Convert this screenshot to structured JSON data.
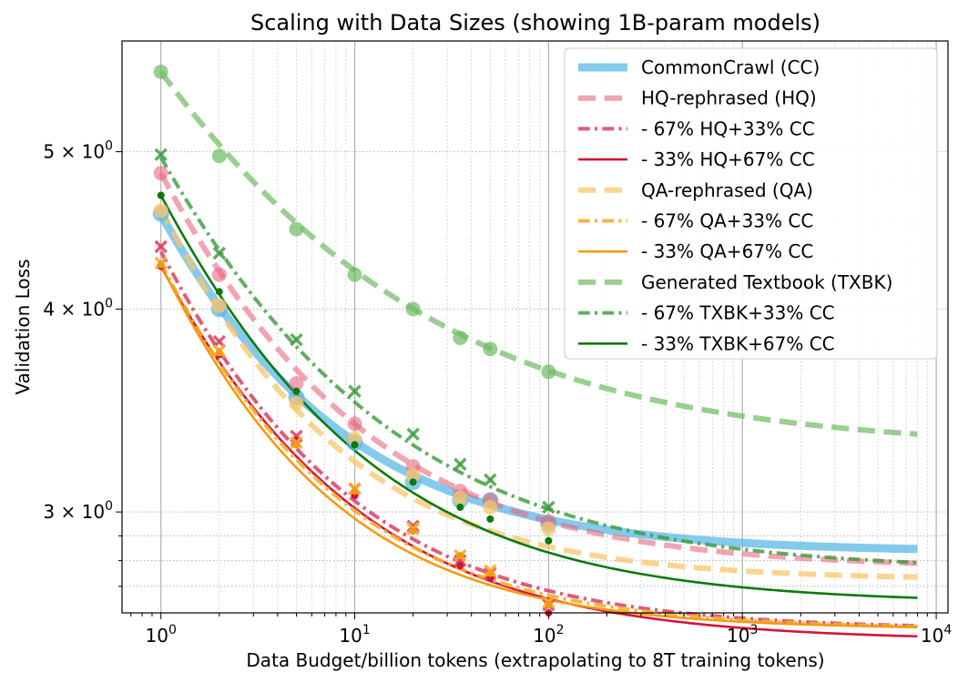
{
  "chart_data": {
    "type": "line",
    "title": "Scaling with Data Sizes (showing 1B-param models)",
    "xlabel": "Data Budget/billion tokens (extrapolating to 8T training tokens)",
    "ylabel": "Validation Loss",
    "xscale": "log",
    "yscale": "log",
    "xlim": [
      0.63,
      11500
    ],
    "ylim": [
      2.6,
      5.85
    ],
    "grid": true,
    "legend_position": "top-right",
    "x_ticks": [
      {
        "value": 1,
        "base": "10",
        "exp": "0"
      },
      {
        "value": 10,
        "base": "10",
        "exp": "1"
      },
      {
        "value": 100,
        "base": "10",
        "exp": "2"
      },
      {
        "value": 1000,
        "base": "10",
        "exp": "3"
      },
      {
        "value": 10000,
        "base": "10",
        "exp": "4"
      }
    ],
    "y_ticks": [
      {
        "value": 3,
        "mant": "3",
        "base": "10",
        "exp": "0"
      },
      {
        "value": 4,
        "mant": "4",
        "base": "10",
        "exp": "0"
      },
      {
        "value": 5,
        "mant": "5",
        "base": "10",
        "exp": "0"
      }
    ],
    "points_x": [
      1,
      2,
      5,
      10,
      20,
      35,
      50,
      100
    ],
    "curve_x_end": 8000,
    "series": [
      {
        "name": "CommonCrawl (CC)",
        "color": "#5bb8e6",
        "dash": "solid",
        "width": 9,
        "opacity": 0.75,
        "marker": "circle",
        "marker_size": 9,
        "fit": {
          "L": 2.835,
          "A": 1.74,
          "alpha": 0.56
        },
        "points": [
          4.58,
          4.0,
          3.53,
          3.31,
          3.13,
          3.05,
          3.05,
          2.95
        ]
      },
      {
        "name": "HQ-rephrased (HQ)",
        "color": "#e8687e",
        "dash": "dashed",
        "width": 6,
        "opacity": 0.6,
        "marker": "circle",
        "marker_size": 8,
        "fit": {
          "L": 2.77,
          "A": 2.08,
          "alpha": 0.52
        },
        "points": [
          4.85,
          4.2,
          3.6,
          3.4,
          3.2,
          3.09,
          3.05,
          2.96
        ]
      },
      {
        "name": "- 67% HQ+33% CC",
        "color": "#d94060",
        "dash": "dashdot",
        "width": 4,
        "opacity": 0.85,
        "marker": "x",
        "marker_size": 6,
        "fit": {
          "L": 2.54,
          "A": 1.8,
          "alpha": 0.55
        },
        "points": [
          4.37,
          3.82,
          3.34,
          3.1,
          2.94,
          2.8,
          2.75,
          2.63
        ]
      },
      {
        "name": "- 33% HQ+67% CC",
        "color": "#d4143a",
        "dash": "solid",
        "width": 2.6,
        "opacity": 1,
        "marker": "dot",
        "marker_size": 4,
        "fit": {
          "L": 2.5,
          "A": 1.75,
          "alpha": 0.53
        },
        "points": [
          4.25,
          3.75,
          3.32,
          3.07,
          2.92,
          2.78,
          2.73,
          2.6
        ]
      },
      {
        "name": "QA-rephrased (QA)",
        "color": "#f9c66b",
        "dash": "dashed",
        "width": 6,
        "opacity": 0.75,
        "marker": "circle",
        "marker_size": 8,
        "fit": {
          "L": 2.725,
          "A": 1.89,
          "alpha": 0.58
        },
        "points": [
          4.6,
          4.02,
          3.5,
          3.33,
          3.16,
          3.06,
          3.02,
          2.93
        ]
      },
      {
        "name": "- 67% QA+33% CC",
        "color": "#f5ad2e",
        "dash": "dashdot",
        "width": 4,
        "opacity": 0.9,
        "marker": "x",
        "marker_size": 6,
        "fit": {
          "L": 2.54,
          "A": 1.73,
          "alpha": 0.57
        },
        "points": [
          4.27,
          3.77,
          3.31,
          3.1,
          2.93,
          2.82,
          2.76,
          2.64
        ]
      },
      {
        "name": "- 33% QA+67% CC",
        "color": "#f59a10",
        "dash": "solid",
        "width": 2.6,
        "opacity": 1,
        "marker": "dot",
        "marker_size": 4,
        "fit": {
          "L": 2.54,
          "A": 1.72,
          "alpha": 0.6
        },
        "points": [
          4.26,
          3.76,
          3.3,
          3.09,
          2.92,
          2.82,
          2.75,
          2.63
        ]
      },
      {
        "name": "Generated Textbook (TXBK)",
        "color": "#6dbb62",
        "dash": "dashed",
        "width": 6,
        "opacity": 0.7,
        "marker": "circle",
        "marker_size": 8,
        "fit": {
          "L": 3.28,
          "A": 2.32,
          "alpha": 0.39
        },
        "points": [
          5.6,
          4.97,
          4.48,
          4.2,
          4.0,
          3.84,
          3.78,
          3.66
        ]
      },
      {
        "name": "- 67% TXBK+33% CC",
        "color": "#3a9a3a",
        "dash": "dashdot",
        "width": 4,
        "opacity": 0.8,
        "marker": "x",
        "marker_size": 6,
        "fit": {
          "L": 2.76,
          "A": 2.2,
          "alpha": 0.47
        },
        "points": [
          4.98,
          4.33,
          3.83,
          3.56,
          3.35,
          3.21,
          3.14,
          3.02
        ]
      },
      {
        "name": "- 33% TXBK+67% CC",
        "color": "#0c7a0c",
        "dash": "solid",
        "width": 2.6,
        "opacity": 1,
        "marker": "dot",
        "marker_size": 4,
        "fit": {
          "L": 2.635,
          "A": 2.065,
          "alpha": 0.51
        },
        "points": [
          4.7,
          4.1,
          3.56,
          3.3,
          3.13,
          3.02,
          2.97,
          2.88
        ]
      }
    ]
  }
}
